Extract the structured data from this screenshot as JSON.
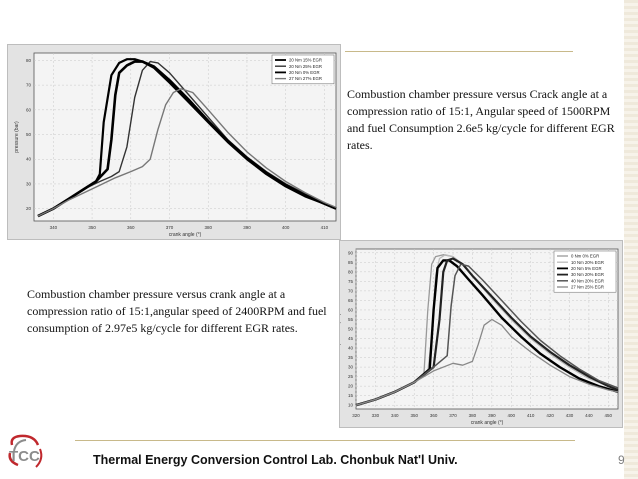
{
  "caption_right": "Combustion chamber pressure versus Crack angle at a compression ratio of 15:1, Angular speed of 1500RPM and fuel Consumption 2.6e5 kg/cycle for different EGR rates.",
  "caption_left": "Combustion chamber pressure versus crank angle at a compression ratio of 15:1,angular speed of 2400RPM and fuel consumption of 2.97e5 kg/cycle for different EGR rates.",
  "footer": {
    "lab": "Thermal Energy Conversion Control Lab.  Chonbuk Nat'l Univ.",
    "page_number": "9",
    "logo_text": "TCC"
  },
  "colors": {
    "accent_rule": "#c8b98a",
    "logo_red": "#c0282d",
    "logo_gray": "#8c8c8c"
  },
  "chart_data": [
    {
      "type": "line",
      "xlabel": "crank angle (°)",
      "ylabel": "pressure (bar)",
      "xticks": [
        340,
        350,
        360,
        370,
        380,
        390,
        400,
        410
      ],
      "yticks": [
        20,
        30,
        40,
        50,
        60,
        70,
        80
      ],
      "xlim": [
        335,
        413
      ],
      "ylim": [
        15,
        83
      ],
      "grid": true,
      "legend_position": "top-right",
      "series": [
        {
          "name": "20 Nm  15% EGR",
          "color": "#000000",
          "width": 2.2,
          "x": [
            336,
            340,
            344,
            348,
            351,
            352,
            353,
            355,
            357,
            359,
            361,
            363,
            366,
            370,
            375,
            380,
            385,
            390,
            395,
            400,
            405,
            410,
            413
          ],
          "y": [
            17,
            20,
            24,
            28,
            31,
            34,
            55,
            74,
            79,
            80.5,
            80.5,
            79.5,
            77,
            71,
            63,
            55,
            47,
            40,
            34,
            29,
            25,
            22,
            20
          ]
        },
        {
          "name": "20 Nm  25% EGR",
          "color": "#333333",
          "width": 1.4,
          "x": [
            336,
            340,
            344,
            348,
            352,
            355,
            357,
            359,
            361,
            363,
            365,
            367,
            370,
            375,
            380,
            385,
            390,
            395,
            400,
            405,
            410,
            413
          ],
          "y": [
            17,
            20,
            24,
            28,
            31,
            33,
            35,
            45,
            65,
            76,
            79.5,
            79,
            75,
            66,
            57,
            48,
            41,
            35,
            30,
            26,
            22,
            20
          ]
        },
        {
          "name": "20 Nm  0% EGR",
          "color": "#000000",
          "width": 2.6,
          "x": [
            336,
            340,
            344,
            348,
            351,
            354,
            355,
            356,
            357,
            359,
            361,
            363,
            366,
            370,
            375,
            380,
            385,
            390,
            395,
            400,
            405,
            410,
            413
          ],
          "y": [
            17,
            20,
            24,
            28,
            31,
            36,
            48,
            66,
            75,
            78,
            79.5,
            79.5,
            77.5,
            72,
            64,
            55.5,
            47.5,
            40.5,
            34.5,
            29.5,
            25.5,
            22,
            20
          ]
        },
        {
          "name": "27 Nm  27% EGR",
          "color": "#777777",
          "width": 1.4,
          "x": [
            336,
            340,
            344,
            348,
            352,
            356,
            360,
            363,
            365,
            367,
            369,
            371,
            373,
            376,
            380,
            385,
            390,
            395,
            400,
            405,
            410,
            413
          ],
          "y": [
            17,
            20,
            23.5,
            26.5,
            29.5,
            32.5,
            35,
            37,
            40,
            52,
            62,
            67,
            68.5,
            67,
            60,
            51,
            43,
            36.5,
            31,
            26.5,
            22.5,
            20.5
          ]
        }
      ]
    },
    {
      "type": "line",
      "xlabel": "crank angle (°)",
      "ylabel": "pressure (bar)",
      "xticks": [
        320,
        330,
        340,
        350,
        360,
        370,
        380,
        390,
        400,
        410,
        420,
        430,
        440,
        450
      ],
      "yticks": [
        10,
        15,
        20,
        25,
        30,
        35,
        40,
        45,
        50,
        55,
        60,
        65,
        70,
        75,
        80,
        85,
        90
      ],
      "xlim": [
        320,
        455
      ],
      "ylim": [
        8,
        92
      ],
      "grid": true,
      "legend_position": "top-right",
      "series": [
        {
          "name": "0 Nm  0% EGR",
          "color": "#999999",
          "width": 1.3,
          "x": [
            320,
            330,
            340,
            350,
            355,
            357,
            359,
            361,
            365,
            370,
            375,
            380,
            390,
            400,
            410,
            420,
            430,
            440,
            450,
            455
          ],
          "y": [
            10,
            13,
            17,
            22,
            26,
            60,
            84,
            88,
            89,
            88,
            84,
            78,
            66,
            55,
            45,
            37,
            30,
            24,
            20,
            18
          ]
        },
        {
          "name": "10 Nm  20% EGR",
          "color": "#bbbbbb",
          "width": 1.3,
          "x": [
            320,
            330,
            340,
            350,
            357,
            359,
            361,
            363,
            366,
            370,
            375,
            380,
            390,
            400,
            410,
            420,
            430,
            440,
            450,
            455
          ],
          "y": [
            10,
            13,
            17,
            22,
            28,
            45,
            78,
            87,
            89,
            88,
            84,
            78,
            66,
            55,
            45,
            37,
            30,
            24,
            20,
            18
          ]
        },
        {
          "name": "20 Nm  5% EGR",
          "color": "#000000",
          "width": 2.4,
          "x": [
            320,
            330,
            340,
            350,
            358,
            360,
            362,
            365,
            368,
            372,
            378,
            385,
            395,
            405,
            415,
            425,
            435,
            445,
            455
          ],
          "y": [
            10,
            13,
            17,
            22,
            29,
            60,
            82,
            86,
            86,
            83,
            76,
            68,
            56,
            46,
            37,
            30,
            24,
            20,
            17
          ]
        },
        {
          "name": "30 Nm  20% EGR",
          "color": "#222222",
          "width": 2.2,
          "x": [
            320,
            330,
            340,
            350,
            360,
            363,
            365,
            367,
            370,
            375,
            380,
            390,
            400,
            410,
            420,
            430,
            440,
            450,
            455
          ],
          "y": [
            10,
            13,
            17,
            22,
            30,
            55,
            80,
            86,
            87,
            84,
            78,
            67,
            56,
            46,
            38,
            31,
            25,
            20,
            18
          ]
        },
        {
          "name": "40 Nm  20% EGR",
          "color": "#555555",
          "width": 1.5,
          "x": [
            320,
            330,
            340,
            350,
            360,
            367,
            369,
            371,
            374,
            378,
            385,
            395,
            405,
            415,
            425,
            435,
            445,
            455
          ],
          "y": [
            10,
            13,
            17,
            22,
            30,
            36,
            62,
            78,
            84,
            83,
            76,
            65,
            54,
            44,
            36,
            29,
            23,
            19
          ]
        },
        {
          "name": "27 Nm  25% EGR",
          "color": "#888888",
          "width": 1.3,
          "x": [
            320,
            330,
            340,
            350,
            360,
            370,
            375,
            380,
            383,
            386,
            390,
            395,
            400,
            410,
            420,
            430,
            440,
            450,
            455
          ],
          "y": [
            10,
            13,
            17,
            22,
            28,
            32,
            31,
            33,
            42,
            52,
            55,
            52,
            46,
            38,
            31,
            25,
            21,
            18,
            17
          ]
        }
      ]
    }
  ]
}
